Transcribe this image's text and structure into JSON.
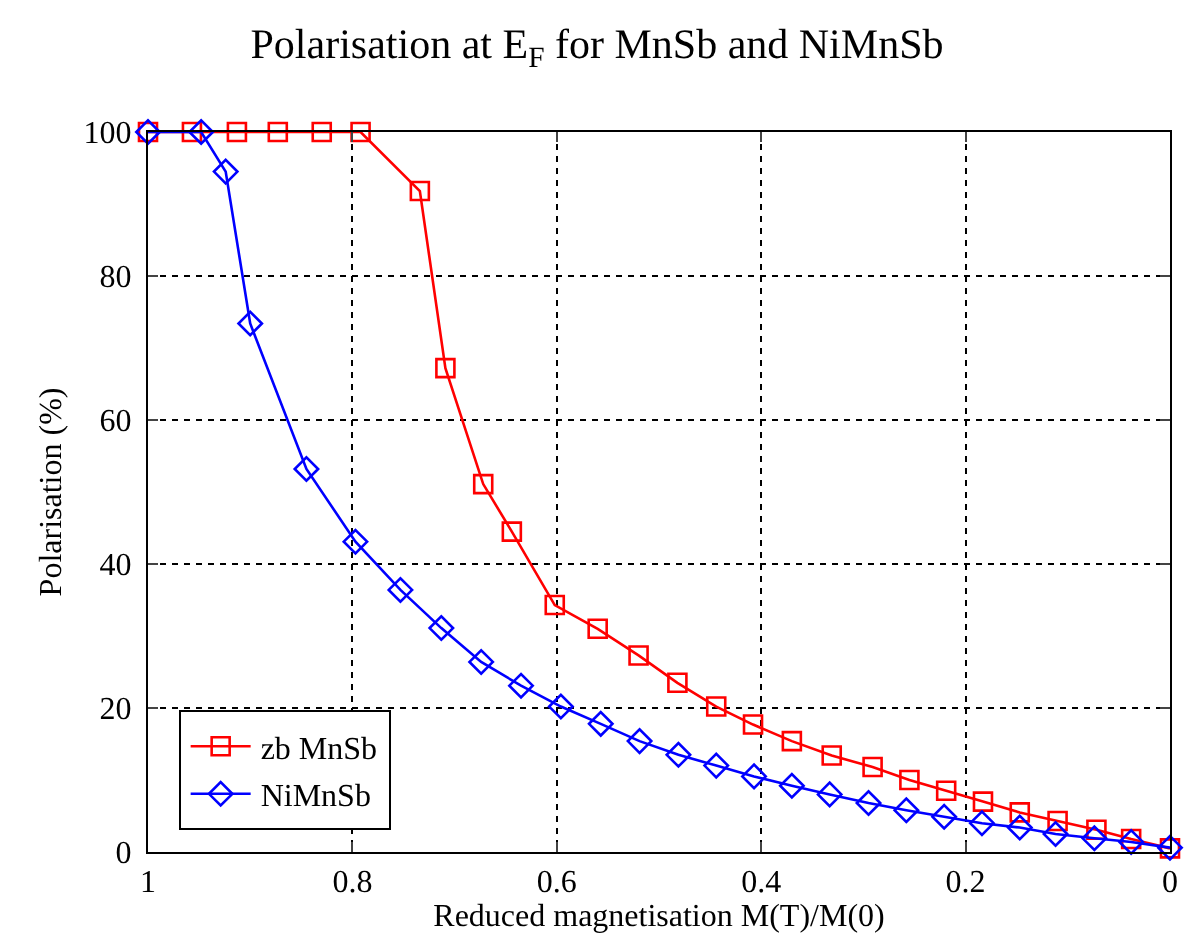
{
  "chart_data": {
    "type": "line",
    "title": "Polarisation at E$_{F}$ for MnSb and NiMnSb",
    "xlabel": "Reduced magnetisation M(T)/M(0)",
    "ylabel": "Polarisation (%)",
    "xlim": [
      1,
      0
    ],
    "xticks": [
      1,
      0.8,
      0.6,
      0.4,
      0.2,
      0
    ],
    "ylim": [
      0,
      100
    ],
    "yticks": [
      0,
      20,
      40,
      60,
      80,
      100
    ],
    "grid": true,
    "legend": "bottom left",
    "series": [
      {
        "name": "zb MnSb",
        "color": "#ff0000",
        "marker": "square",
        "x": [
          1.0,
          0.957,
          0.913,
          0.873,
          0.83,
          0.792,
          0.734,
          0.709,
          0.672,
          0.644,
          0.602,
          0.56,
          0.52,
          0.482,
          0.444,
          0.408,
          0.37,
          0.331,
          0.291,
          0.255,
          0.219,
          0.183,
          0.147,
          0.11,
          0.072,
          0.038,
          0
        ],
        "values": [
          100,
          100,
          100,
          100,
          100,
          100,
          91.8,
          67.2,
          51.1,
          44.5,
          34.3,
          31,
          27.3,
          23.5,
          20.2,
          17.7,
          15.4,
          13.4,
          11.8,
          10,
          8.5,
          7,
          5.5,
          4.3,
          3.1,
          1.8,
          0.5
        ]
      },
      {
        "name": "NiMnSb",
        "color": "#0000ff",
        "marker": "diamond",
        "x": [
          1.0,
          0.948,
          0.924,
          0.9,
          0.845,
          0.797,
          0.753,
          0.713,
          0.674,
          0.635,
          0.596,
          0.557,
          0.519,
          0.481,
          0.444,
          0.407,
          0.37,
          0.333,
          0.295,
          0.258,
          0.221,
          0.184,
          0.147,
          0.112,
          0.074,
          0.038,
          0
        ],
        "values": [
          100,
          100,
          94.5,
          73.4,
          53.2,
          43.1,
          36.4,
          31.1,
          26.4,
          23.1,
          20.2,
          17.8,
          15.4,
          13.5,
          12,
          10.5,
          9.2,
          8,
          6.8,
          5.8,
          4.9,
          4,
          3.4,
          2.5,
          1.9,
          1.4,
          0.6
        ]
      }
    ]
  }
}
